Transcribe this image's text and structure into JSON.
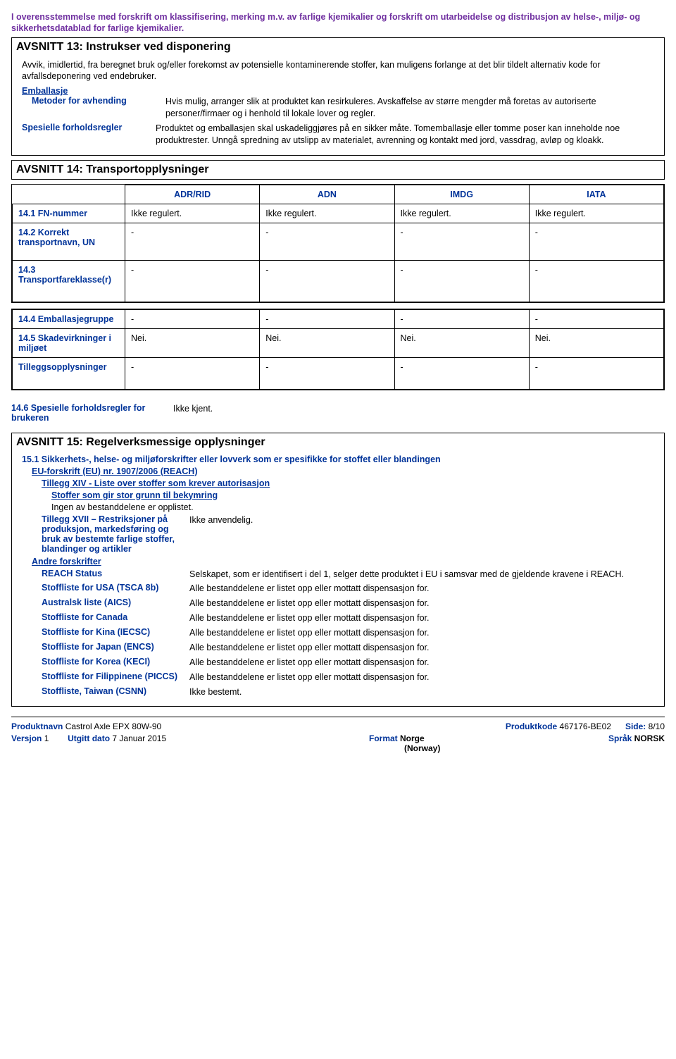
{
  "headerNote": "I overensstemmelse med forskrift om klassifisering, merking m.v. av farlige kjemikalier og forskrift om utarbeidelse og distribusjon av helse-, miljø- og sikkerhetsdatablad for farlige kjemikalier.",
  "s13": {
    "title": "AVSNITT 13: Instrukser ved disponering",
    "intro": "Avvik, imidlertid, fra beregnet bruk og/eller forekomst av potensielle kontaminerende stoffer, kan muligens forlange at det blir tildelt alternativ kode for avfallsdeponering ved endebruker.",
    "emballasje": "Emballasje",
    "rows": [
      {
        "label": "Metoder for avhending",
        "value": "Hvis mulig, arranger slik at produktet kan resirkuleres.  Avskaffelse av større mengder må foretas av autoriserte personer/firmaer og i henhold til lokale lover og regler."
      },
      {
        "label": "Spesielle forholdsregler",
        "value": "Produktet og emballasjen skal uskadeliggjøres på en sikker måte.  Tomemballasje eller tomme poser kan inneholde noe produktrester.  Unngå spredning av utslipp av materialet, avrenning og kontakt med jord, vassdrag, avløp og kloakk."
      }
    ]
  },
  "s14": {
    "title": "AVSNITT 14: Transportopplysninger",
    "headers": [
      "",
      "ADR/RID",
      "ADN",
      "IMDG",
      "IATA"
    ],
    "table1": [
      {
        "label": "14.1 FN-nummer",
        "cells": [
          "Ikke regulert.",
          "Ikke regulert.",
          "Ikke regulert.",
          "Ikke regulert."
        ]
      },
      {
        "label": "14.2 Korrekt transportnavn, UN",
        "cells": [
          "-",
          "-",
          "-",
          "-"
        ]
      },
      {
        "label": "14.3 Transportfareklasse(r)",
        "cells": [
          "-",
          "-",
          "-",
          "-"
        ]
      }
    ],
    "table2": [
      {
        "label": "14.4 Emballasjegruppe",
        "cells": [
          "-",
          "-",
          "-",
          "-"
        ]
      },
      {
        "label": "14.5 Skadevirkninger i miljøet",
        "cells": [
          "Nei.",
          "Nei.",
          "Nei.",
          "Nei."
        ]
      },
      {
        "label": "Tilleggsopplysninger",
        "cells": [
          "-",
          "-",
          "-",
          "-"
        ]
      }
    ],
    "r146": {
      "label": "14.6 Spesielle forholdsregler for brukeren",
      "value": "Ikke kjent."
    }
  },
  "s15": {
    "title": "AVSNITT 15: Regelverksmessige opplysninger",
    "heading151": "15.1 Sikkerhets-, helse- og miljøforskrifter eller lovverk som er spesifikke for stoffet eller blandingen",
    "euReg": "EU-forskrift (EU) nr. 1907/2006 (REACH)",
    "annex14": "Tillegg XIV - Liste over stoffer som krever autorisasjon",
    "svhc": "Stoffer som gir stor grunn til bekymring",
    "none": "Ingen av bestanddelene er opplistet.",
    "annex17": {
      "label": "Tillegg XVII – Restriksjoner på produksjon, markedsføring og bruk av bestemte farlige stoffer, blandinger og artikler",
      "value": "Ikke anvendelig."
    },
    "otherRegs": "Andre forskrifter",
    "rows": [
      {
        "label": "REACH Status",
        "value": "Selskapet, som er identifisert i del 1, selger dette produktet i EU i samsvar med de gjeldende kravene i REACH."
      },
      {
        "label": "Stoffliste for USA (TSCA 8b)",
        "value": "Alle bestanddelene er listet opp eller mottatt dispensasjon for."
      },
      {
        "label": "Australsk liste (AICS)",
        "value": "Alle bestanddelene er listet opp eller mottatt dispensasjon for."
      },
      {
        "label": "Stoffliste for Canada",
        "value": "Alle bestanddelene er listet opp eller mottatt dispensasjon for."
      },
      {
        "label": "Stoffliste for Kina (IECSC)",
        "value": "Alle bestanddelene er listet opp eller mottatt dispensasjon for."
      },
      {
        "label": "Stoffliste for Japan (ENCS)",
        "value": "Alle bestanddelene er listet opp eller mottatt dispensasjon for."
      },
      {
        "label": "Stoffliste for Korea (KECI)",
        "value": "Alle bestanddelene er listet opp eller mottatt dispensasjon for."
      },
      {
        "label": "Stoffliste for Filippinene (PICCS)",
        "value": "Alle bestanddelene er listet opp eller mottatt dispensasjon for."
      },
      {
        "label": "Stoffliste, Taiwan (CSNN)",
        "value": "Ikke bestemt."
      }
    ]
  },
  "footer": {
    "productNameLabel": "Produktnavn",
    "productName": "Castrol Axle EPX 80W-90",
    "productCodeLabel": "Produktkode",
    "productCode": "467176-BE02",
    "sideLabel": "Side:",
    "side": "8/10",
    "versionLabel": "Versjon",
    "version": "1",
    "issuedLabel": "Utgitt dato",
    "issued": "7 Januar 2015",
    "formatLabel": "Format",
    "format": "Norge",
    "sub": "(Norway)",
    "langLabel": "Språk",
    "lang": "NORSK"
  }
}
